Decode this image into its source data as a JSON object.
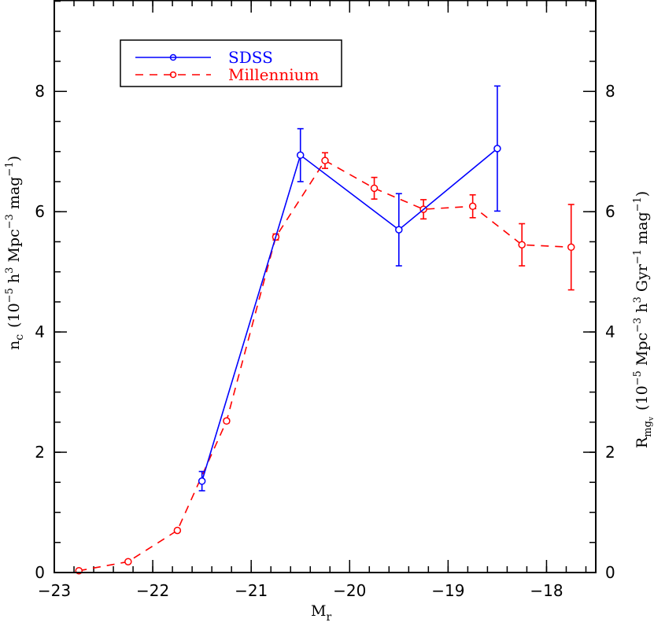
{
  "chart_data": {
    "type": "line",
    "title": "",
    "xlabel": "M_r",
    "ylabel": "n_c (10^-5 h^3 Mpc^-3 mag^-1)",
    "ylabel_right": "R_mg_v (10^-5 Mpc^-3 h^3 Gyr^-1 mag^-1)",
    "xlim": [
      -23,
      -17.5
    ],
    "ylim": [
      0,
      9.52
    ],
    "x_ticks": [
      -23,
      -22,
      -21,
      -20,
      -19,
      -18
    ],
    "x_tick_labels": [
      "−23",
      "−22",
      "−21",
      "−20",
      "−19",
      "−18"
    ],
    "x_minor_step": 0.2,
    "y_ticks": [
      0,
      2,
      4,
      6,
      8
    ],
    "y_tick_labels": [
      "0",
      "2",
      "4",
      "6",
      "8"
    ],
    "y_minor_step": 0.5,
    "grid": false,
    "legend_position": "upper left",
    "series": [
      {
        "name": "SDSS",
        "color": "#0000ff",
        "linestyle": "solid",
        "marker": "open-circle",
        "x": [
          -21.5,
          -20.5,
          -19.5,
          -18.5
        ],
        "values": [
          1.52,
          6.94,
          5.7,
          7.05
        ],
        "errors": [
          0.16,
          0.44,
          0.6,
          1.04
        ]
      },
      {
        "name": "Millennium",
        "color": "#ff0000",
        "linestyle": "dashed",
        "marker": "open-circle",
        "x": [
          -22.75,
          -22.25,
          -21.75,
          -21.25,
          -20.75,
          -20.25,
          -19.75,
          -19.25,
          -18.75,
          -18.25,
          -17.75
        ],
        "values": [
          0.03,
          0.18,
          0.7,
          2.52,
          5.58,
          6.85,
          6.39,
          6.04,
          6.09,
          5.45,
          5.41
        ],
        "errors": [
          0.0,
          0.0,
          0.02,
          0.03,
          0.05,
          0.13,
          0.18,
          0.16,
          0.19,
          0.35,
          0.71
        ]
      }
    ]
  },
  "labels": {
    "xlabel_main": "M",
    "xlabel_sub": "r",
    "ylabel_left_main": "n",
    "ylabel_left_sub": "c",
    "ylabel_left_rest": "(10",
    "ylabel_left_exp1": "−5",
    "ylabel_left_h": " h",
    "ylabel_left_exp2": "3",
    "ylabel_left_mpc": " Mpc",
    "ylabel_left_exp3": "−3",
    "ylabel_left_mag": " mag",
    "ylabel_left_exp4": "−1",
    "ylabel_left_close": ")",
    "ylabel_right_main": "R",
    "ylabel_right_sub": "mg",
    "ylabel_right_subsub": "v",
    "ylabel_right_rest": "(10",
    "ylabel_right_exp1": "−5",
    "ylabel_right_mpc": " Mpc",
    "ylabel_right_exp2": "−3",
    "ylabel_right_h": " h",
    "ylabel_right_exp3": "3",
    "ylabel_right_gyr": " Gyr",
    "ylabel_right_exp4": "−1",
    "ylabel_right_mag": " mag",
    "ylabel_right_exp5": "−1",
    "ylabel_right_close": ")"
  },
  "legend": {
    "items": [
      {
        "label": "SDSS",
        "color": "#0000ff"
      },
      {
        "label": "Millennium",
        "color": "#ff0000"
      }
    ]
  }
}
